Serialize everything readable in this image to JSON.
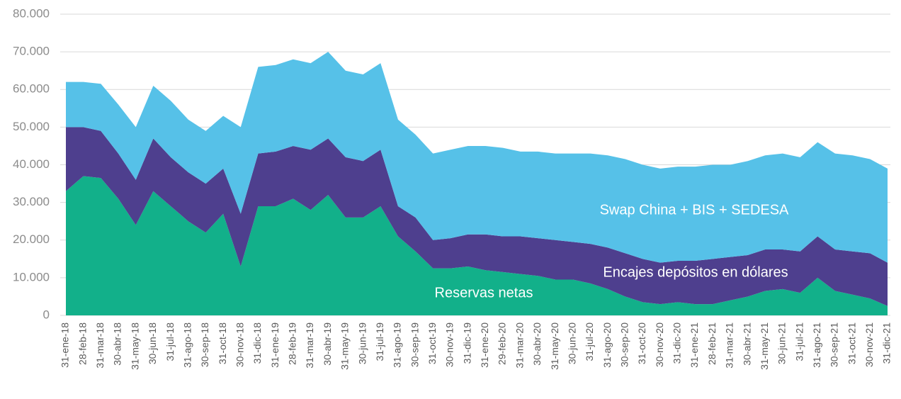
{
  "chart_data": {
    "type": "stacked_area",
    "categories": [
      "31-ene-18",
      "28-feb-18",
      "31-mar-18",
      "30-abr-18",
      "31-may-18",
      "30-jun-18",
      "31-jul-18",
      "31-ago-18",
      "30-sep-18",
      "31-oct-18",
      "30-nov-18",
      "31-dic-18",
      "31-ene-19",
      "28-feb-19",
      "31-mar-19",
      "30-abr-19",
      "31-may-19",
      "30-jun-19",
      "31-jul-19",
      "31-ago-19",
      "30-sep-19",
      "31-oct-19",
      "30-nov-19",
      "31-dic-19",
      "31-ene-20",
      "29-feb-20",
      "31-mar-20",
      "30-abr-20",
      "31-may-20",
      "30-jun-20",
      "31-jul-20",
      "31-ago-20",
      "30-sep-20",
      "31-oct-20",
      "30-nov-20",
      "31-dic-20",
      "31-ene-21",
      "28-feb-21",
      "31-mar-21",
      "30-abr-21",
      "31-may-21",
      "30-jun-21",
      "31-jul-21",
      "31-ago-21",
      "30-sep-21",
      "31-oct-21",
      "30-nov-21",
      "31-dic-21"
    ],
    "series": [
      {
        "name": "Reservas netas",
        "color": "#12b08a",
        "values": [
          33000,
          37000,
          36500,
          31000,
          24000,
          33000,
          29000,
          25000,
          22000,
          27000,
          13000,
          29000,
          29000,
          31000,
          28000,
          32000,
          26000,
          26000,
          29000,
          21000,
          17000,
          12500,
          12500,
          13000,
          12000,
          11500,
          11000,
          10500,
          9500,
          9500,
          8500,
          7000,
          5000,
          3500,
          3000,
          3500,
          3000,
          3000,
          4000,
          5000,
          6500,
          7000,
          6000,
          10000,
          6500,
          5500,
          4500,
          2500
        ]
      },
      {
        "name": "Encajes depósitos en dólares",
        "color": "#4e3f8e",
        "values": [
          17000,
          13000,
          12500,
          12000,
          12000,
          14000,
          13000,
          13000,
          13000,
          12000,
          14000,
          14000,
          14500,
          14000,
          16000,
          15000,
          16000,
          15000,
          15000,
          8000,
          9000,
          7500,
          8000,
          8500,
          9500,
          9500,
          10000,
          10000,
          10500,
          10000,
          10500,
          11000,
          11500,
          11500,
          11000,
          11000,
          11500,
          12000,
          11500,
          11000,
          11000,
          10500,
          11000,
          11000,
          11000,
          11500,
          12000,
          11500
        ]
      },
      {
        "name": "Swap China + BIS + SEDESA",
        "color": "#56c1e8",
        "values": [
          12000,
          12000,
          12500,
          13000,
          14000,
          14000,
          15000,
          14000,
          14000,
          14000,
          23000,
          23000,
          23000,
          23000,
          23000,
          23000,
          23000,
          23000,
          23000,
          23000,
          22000,
          23000,
          23500,
          23500,
          23500,
          23500,
          22500,
          23000,
          23000,
          23500,
          24000,
          24500,
          25000,
          25000,
          25000,
          25000,
          25000,
          25000,
          24500,
          25000,
          25000,
          25500,
          25000,
          25000,
          25500,
          25500,
          25000,
          25000
        ]
      }
    ],
    "ylim": [
      0,
      80000
    ],
    "yticks": [
      0,
      {
        "value": 10000,
        "label": "10.000"
      },
      {
        "value": 20000,
        "label": "20.000"
      },
      {
        "value": 30000,
        "label": "30.000"
      },
      {
        "value": 40000,
        "label": "40.000"
      },
      {
        "value": 50000,
        "label": "50.000"
      },
      {
        "value": 60000,
        "label": "60.000"
      },
      {
        "value": 70000,
        "label": "70.000"
      },
      {
        "value": 80000,
        "label": "80.000"
      }
    ],
    "grid": true
  }
}
